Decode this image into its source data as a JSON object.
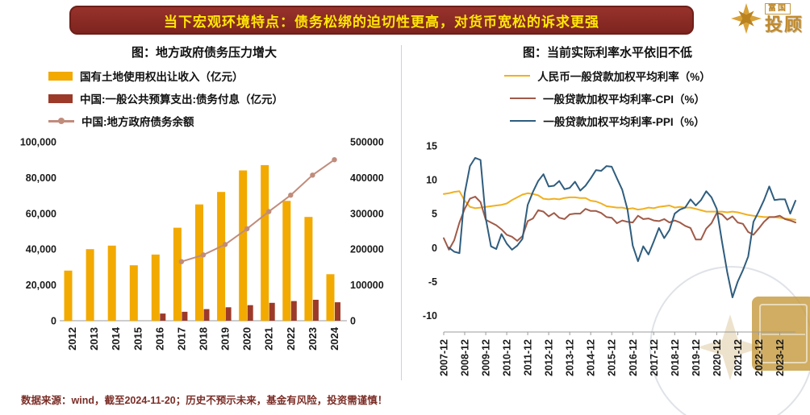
{
  "header": {
    "title": "当下宏观环境特点：债务松绑的迫切性更高，对货币宽松的诉求更强",
    "logo": {
      "brand_small": "富国",
      "brand_large": "投顾"
    }
  },
  "footer": {
    "note": "数据来源：wind，截至2024-11-20；历史不预示未来，基金有风险，投资需谨慎！"
  },
  "chart_data": [
    {
      "type": "bar+line",
      "title": "图：地方政府债务压力增大",
      "categories": [
        "2012",
        "2013",
        "2014",
        "2015",
        "2016",
        "2017",
        "2018",
        "2019",
        "2020",
        "2021",
        "2022",
        "2023",
        "2024"
      ],
      "left_axis": {
        "min": 0,
        "max": 100000,
        "step": 20000,
        "tick_labels": [
          "0",
          "20,000",
          "40,000",
          "60,000",
          "80,000",
          "100,000"
        ]
      },
      "right_axis": {
        "min": 0,
        "max": 500000,
        "step": 100000,
        "tick_labels": [
          "0",
          "100000",
          "200000",
          "300000",
          "400000",
          "500000"
        ]
      },
      "series": [
        {
          "name": "国有土地使用权出让收入（亿元）",
          "type": "bar",
          "axis": "left",
          "color": "#F2A900",
          "values": [
            28000,
            40000,
            42000,
            31000,
            37000,
            52000,
            65000,
            72000,
            84000,
            87000,
            67000,
            58000,
            26000
          ]
        },
        {
          "name": "中国:一般公共预算支出:债务付息（亿元）",
          "type": "bar",
          "axis": "left",
          "color": "#9C3A2A",
          "values": [
            0,
            0,
            0,
            0,
            4000,
            5000,
            6500,
            7500,
            8700,
            10000,
            11000,
            11700,
            10300
          ]
        },
        {
          "name": "中国:地方政府债务余额",
          "type": "line",
          "axis": "right",
          "color": "#C08C7C",
          "values": [
            null,
            null,
            null,
            null,
            null,
            165000,
            184000,
            213000,
            257000,
            305000,
            351000,
            407000,
            450000
          ]
        }
      ]
    },
    {
      "type": "line",
      "title": "图：当前实际利率水平依旧不低",
      "frequency": "quarterly",
      "x_count": 68,
      "x_label_every": 4,
      "x_labels": [
        "2007-12",
        "2008-12",
        "2009-12",
        "2010-12",
        "2011-12",
        "2012-12",
        "2013-12",
        "2014-12",
        "2015-12",
        "2016-12",
        "2017-12",
        "2018-12",
        "2019-12",
        "2020-12",
        "2021-12",
        "2022-12",
        "2023-12"
      ],
      "y_axis": {
        "min": -10,
        "max": 15,
        "step": 5,
        "ticks": [
          -10,
          -5,
          0,
          5,
          10,
          15
        ]
      },
      "series": [
        {
          "name": "人民币一般贷款加权平均利率（%）",
          "color": "#F0B021",
          "values": [
            7.9,
            8.0,
            8.2,
            8.3,
            6.9,
            6.0,
            5.8,
            5.9,
            6.0,
            6.1,
            6.2,
            6.3,
            6.5,
            7.0,
            7.4,
            7.8,
            8.0,
            7.9,
            7.7,
            7.2,
            7.1,
            7.2,
            7.1,
            7.3,
            7.4,
            7.4,
            7.3,
            7.3,
            6.9,
            6.8,
            6.5,
            6.1,
            6.0,
            5.9,
            5.9,
            5.7,
            5.8,
            5.6,
            5.7,
            5.9,
            5.8,
            6.0,
            6.1,
            6.2,
            5.9,
            6.0,
            5.9,
            5.9,
            5.7,
            5.5,
            5.3,
            5.3,
            5.3,
            5.3,
            5.2,
            5.3,
            5.2,
            5.0,
            4.8,
            4.7,
            4.6,
            4.5,
            4.5,
            4.5,
            4.4,
            4.3,
            4.2,
            4.1
          ]
        },
        {
          "name": "一般贷款加权平均利率-CPI（%）",
          "color": "#A05A48",
          "values": [
            1.4,
            -0.3,
            1.1,
            3.7,
            5.7,
            7.2,
            7.5,
            6.7,
            4.1,
            3.7,
            3.3,
            2.7,
            1.9,
            1.6,
            1.0,
            1.7,
            3.9,
            4.3,
            5.5,
            5.3,
            4.6,
            5.1,
            4.4,
            4.2,
            4.9,
            5.0,
            5.0,
            5.7,
            5.4,
            5.4,
            5.1,
            4.5,
            4.4,
            3.6,
            4.0,
            3.8,
            3.7,
            4.7,
            4.2,
            4.3,
            4.0,
            3.9,
            4.2,
            3.7,
            4.0,
            3.7,
            3.2,
            2.9,
            1.2,
            1.2,
            2.8,
            3.6,
            5.1,
            4.9,
            4.1,
            4.6,
            3.7,
            3.5,
            2.3,
            1.9,
            2.8,
            3.8,
            4.5,
            4.5,
            4.7,
            4.2,
            4.0,
            3.7
          ]
        },
        {
          "name": "一般贷款加权平均利率-PPI（%）",
          "color": "#2F5D7E",
          "values": [
            null,
            0.0,
            -0.6,
            -0.8,
            8.0,
            12.0,
            13.2,
            12.9,
            4.3,
            0.2,
            -0.2,
            2.0,
            0.6,
            -0.3,
            0.3,
            1.3,
            6.3,
            8.2,
            9.8,
            10.8,
            9.0,
            9.1,
            9.8,
            8.6,
            8.8,
            9.7,
            8.4,
            9.1,
            10.2,
            11.4,
            11.3,
            12.0,
            11.9,
            10.2,
            8.5,
            5.6,
            0.3,
            -2.0,
            0.2,
            -1.0,
            0.9,
            2.9,
            1.4,
            2.6,
            5.0,
            5.6,
            5.9,
            7.1,
            6.2,
            7.0,
            8.3,
            7.4,
            5.7,
            0.9,
            -3.6,
            -7.3,
            -5.0,
            -3.3,
            -1.3,
            3.8,
            5.3,
            7.0,
            9.0,
            7.0,
            7.1,
            7.1,
            5.0,
            6.9
          ]
        }
      ]
    }
  ]
}
